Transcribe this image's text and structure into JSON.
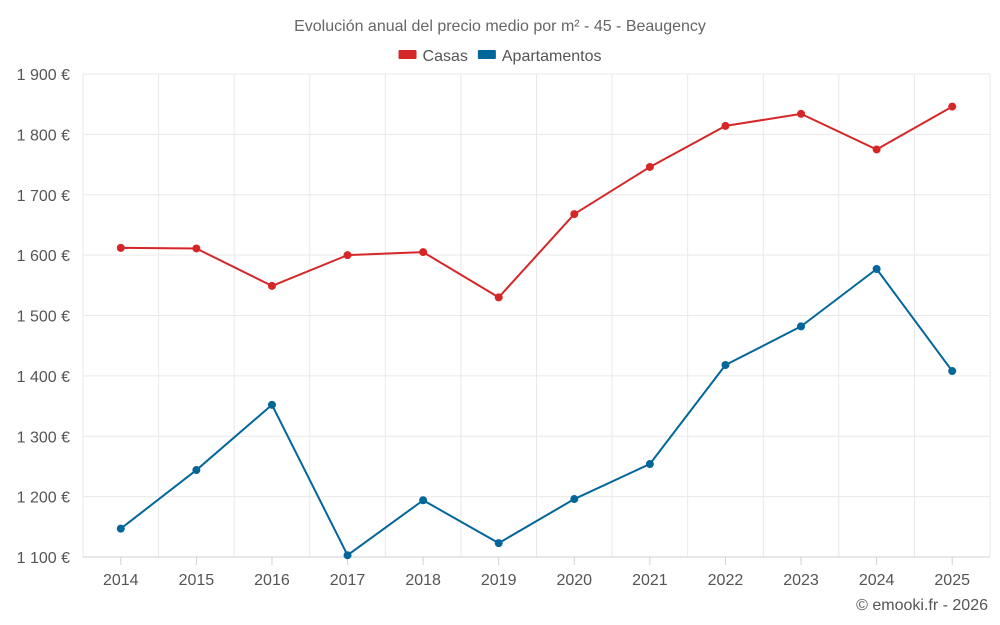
{
  "chart_data": {
    "type": "line",
    "title": "Evolución anual del precio medio por m² - 45 - Beaugency",
    "categories": [
      "2014",
      "2015",
      "2016",
      "2017",
      "2018",
      "2019",
      "2020",
      "2021",
      "2022",
      "2023",
      "2024",
      "2025"
    ],
    "series": [
      {
        "name": "Casas",
        "color": "#d62728",
        "values": [
          1612,
          1611,
          1549,
          1600,
          1605,
          1530,
          1668,
          1746,
          1814,
          1834,
          1775,
          1846
        ]
      },
      {
        "name": "Apartamentos",
        "color": "#03669b",
        "values": [
          1147,
          1244,
          1352,
          1103,
          1194,
          1123,
          1196,
          1254,
          1418,
          1482,
          1577,
          1408
        ]
      }
    ],
    "y_ticks": [
      1100,
      1200,
      1300,
      1400,
      1500,
      1600,
      1700,
      1800,
      1900
    ],
    "y_tick_labels": [
      "1 100 €",
      "1 200 €",
      "1 300 €",
      "1 400 €",
      "1 500 €",
      "1 600 €",
      "1 700 €",
      "1 800 €",
      "1 900 €"
    ],
    "ylim": [
      1100,
      1900
    ],
    "xlabel": "",
    "ylabel": "",
    "grid": true,
    "legend_position": "top-center"
  },
  "credit": "© emooki.fr - 2026"
}
